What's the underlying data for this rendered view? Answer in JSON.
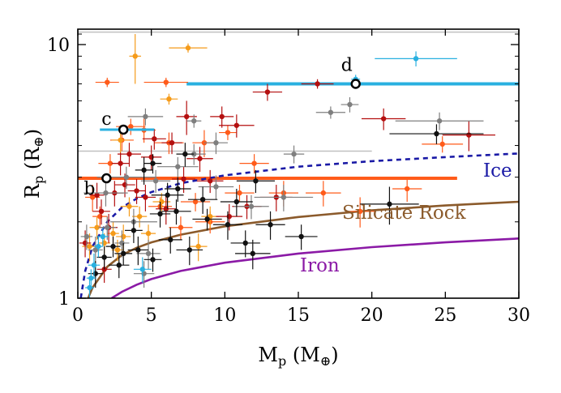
{
  "chart_data": {
    "type": "scatter",
    "title": "",
    "xlabel": {
      "main": "M",
      "sub": "p",
      "unit_open": " (M",
      "unit_sub": "⊕",
      "unit_close": ")"
    },
    "ylabel": {
      "main": "R",
      "sub": "p",
      "unit_open": " (R",
      "unit_sub": "⊕",
      "unit_close": ")"
    },
    "xlim": [
      0,
      30
    ],
    "ylim": [
      1,
      11.5
    ],
    "yscale": "log",
    "grid": false,
    "x_ticks": [
      0,
      5,
      10,
      15,
      20,
      25,
      30
    ],
    "y_ticks": [
      1,
      10
    ],
    "curves": [
      {
        "name": "Ice",
        "color": "#1a1aa6",
        "style": "dashed",
        "points": [
          [
            0.2,
            1.0
          ],
          [
            0.5,
            1.28
          ],
          [
            1,
            1.6
          ],
          [
            2,
            2.0
          ],
          [
            3,
            2.28
          ],
          [
            4,
            2.47
          ],
          [
            5,
            2.62
          ],
          [
            7,
            2.84
          ],
          [
            10,
            3.05
          ],
          [
            15,
            3.3
          ],
          [
            20,
            3.47
          ],
          [
            25,
            3.6
          ],
          [
            30,
            3.72
          ]
        ]
      },
      {
        "name": "Silicate Rock",
        "color": "#8b5a2b",
        "style": "solid",
        "points": [
          [
            0.7,
            1.0
          ],
          [
            1,
            1.1
          ],
          [
            2,
            1.33
          ],
          [
            3,
            1.48
          ],
          [
            4,
            1.58
          ],
          [
            5,
            1.66
          ],
          [
            7,
            1.78
          ],
          [
            10,
            1.92
          ],
          [
            15,
            2.09
          ],
          [
            20,
            2.22
          ],
          [
            25,
            2.32
          ],
          [
            30,
            2.4
          ]
        ]
      },
      {
        "name": "Iron",
        "color": "#8b1aa6",
        "style": "solid",
        "points": [
          [
            2.3,
            1.0
          ],
          [
            3,
            1.06
          ],
          [
            4,
            1.13
          ],
          [
            5,
            1.19
          ],
          [
            7,
            1.28
          ],
          [
            10,
            1.38
          ],
          [
            15,
            1.5
          ],
          [
            20,
            1.59
          ],
          [
            25,
            1.66
          ],
          [
            30,
            1.72
          ]
        ]
      }
    ],
    "reference_lines": [
      {
        "color": "#c0c0c0",
        "y": 11.2,
        "x_from": 0,
        "x_to": 30
      },
      {
        "color": "#c0c0c0",
        "y": 3.8,
        "x_from": 0,
        "x_to": 20
      },
      {
        "color": "#29b0e0",
        "y": 7.0,
        "x_from": 7.4,
        "x_to": 30
      },
      {
        "color": "#ff5b1a",
        "y": 2.97,
        "x_from": 0,
        "x_to": 25.8
      }
    ],
    "labeled_planets": [
      {
        "label": "b",
        "x": 1.95,
        "y": 2.97
      },
      {
        "label": "c",
        "x": 3.1,
        "y": 4.62,
        "x_err": [
          1.5,
          5.2
        ]
      },
      {
        "label": "d",
        "x": 18.9,
        "y": 7.0
      }
    ],
    "series": [
      {
        "color": "#ff5b1a",
        "points": [
          [
            2,
            7.1,
            0.8,
            0.3
          ],
          [
            6,
            7.1,
            1.5,
            0.3
          ],
          [
            4.5,
            4.6,
            0.8,
            0.5
          ],
          [
            1,
            2.5,
            0.5,
            0.3
          ],
          [
            2.2,
            3.4,
            0.8,
            0.3
          ],
          [
            3,
            4.2,
            0.8,
            0.4
          ],
          [
            5.6,
            2.3,
            0.8,
            0.2
          ],
          [
            7,
            1.9,
            0.8,
            0.2
          ],
          [
            8,
            2.4,
            1.0,
            0.2
          ],
          [
            11,
            2.6,
            1.0,
            0.2
          ],
          [
            16.7,
            2.6,
            1.2,
            0.3
          ],
          [
            19.2,
            2.2,
            1.0,
            0.3
          ],
          [
            22.4,
            2.7,
            1.0,
            0.3
          ],
          [
            8.6,
            4.1,
            0.8,
            0.5
          ],
          [
            12,
            3.4,
            1.0,
            0.3
          ],
          [
            14,
            2.6,
            1.0,
            0.3
          ],
          [
            6.2,
            4.1,
            1.0,
            0.4
          ],
          [
            24.8,
            4.05,
            1.4,
            0.3
          ],
          [
            1.5,
            2.1,
            0.5,
            0.2
          ],
          [
            9,
            2.0,
            1.0,
            0.2
          ],
          [
            10.2,
            4.5,
            0.6,
            0.3
          ],
          [
            3.6,
            4.75,
            1.0,
            0.35
          ]
        ]
      },
      {
        "color": "#f59b1a",
        "points": [
          [
            3.9,
            9.0,
            0.4,
            2.0
          ],
          [
            7.5,
            9.7,
            1.3,
            0.4
          ],
          [
            6.2,
            6.1,
            0.6,
            0.3
          ],
          [
            2.9,
            4.2,
            0.6,
            0.6
          ],
          [
            0.8,
            1.6,
            0.5,
            0.2
          ],
          [
            1.3,
            1.9,
            0.5,
            0.2
          ],
          [
            2.4,
            1.8,
            0.4,
            0.2
          ],
          [
            3.1,
            1.75,
            0.5,
            0.2
          ],
          [
            4.2,
            2.1,
            0.5,
            0.2
          ],
          [
            5.7,
            2.4,
            0.6,
            0.2
          ],
          [
            8.2,
            1.6,
            0.6,
            0.2
          ],
          [
            9,
            2.1,
            0.6,
            0.2
          ],
          [
            2.7,
            1.55,
            0.4,
            0.15
          ],
          [
            1.8,
            1.65,
            0.4,
            0.15
          ],
          [
            3.5,
            2.3,
            0.6,
            0.2
          ],
          [
            4.8,
            1.8,
            0.5,
            0.15
          ]
        ]
      },
      {
        "color": "#b40f0f",
        "points": [
          [
            2.5,
            2.6,
            0.6,
            0.3
          ],
          [
            3.5,
            3.7,
            0.8,
            0.4
          ],
          [
            5.2,
            4.25,
            0.8,
            0.4
          ],
          [
            7.4,
            5.2,
            0.7,
            0.8
          ],
          [
            9.8,
            5.2,
            0.8,
            0.5
          ],
          [
            12.9,
            6.5,
            1.0,
            0.5
          ],
          [
            16.3,
            7.0,
            1.1,
            0.3
          ],
          [
            20.8,
            5.1,
            1.5,
            0.5
          ],
          [
            26.6,
            4.4,
            1.8,
            0.6
          ],
          [
            10.8,
            4.8,
            1.2,
            0.5
          ],
          [
            8.3,
            3.55,
            0.9,
            0.4
          ],
          [
            6.4,
            4.1,
            0.7,
            0.4
          ],
          [
            3.2,
            2.8,
            0.7,
            0.3
          ],
          [
            1.6,
            2.2,
            0.6,
            0.25
          ],
          [
            2.1,
            1.9,
            0.6,
            0.25
          ],
          [
            4.6,
            2.5,
            0.7,
            0.3
          ],
          [
            6,
            2.25,
            0.7,
            0.3
          ],
          [
            10.3,
            2.1,
            0.9,
            0.25
          ],
          [
            11.5,
            2.3,
            1.0,
            0.25
          ],
          [
            13.5,
            2.5,
            1.1,
            0.3
          ],
          [
            5,
            3.6,
            0.7,
            0.4
          ],
          [
            7.2,
            2.95,
            0.8,
            0.35
          ],
          [
            9,
            2.9,
            0.9,
            0.3
          ],
          [
            4,
            2.65,
            0.6,
            0.3
          ],
          [
            2.9,
            3.4,
            0.6,
            0.35
          ],
          [
            1.3,
            2.55,
            0.5,
            0.3
          ],
          [
            0.5,
            1.65,
            0.4,
            0.2
          ],
          [
            1.8,
            1.3,
            0.5,
            0.15
          ]
        ]
      },
      {
        "color": "#7f7f7f",
        "points": [
          [
            4.6,
            5.2,
            1.2,
            0.4
          ],
          [
            7.9,
            5.0,
            0.5,
            0.3
          ],
          [
            9.4,
            4.1,
            0.8,
            0.4
          ],
          [
            14.7,
            3.7,
            0.7,
            0.3
          ],
          [
            17.2,
            5.4,
            1.0,
            0.3
          ],
          [
            18.5,
            5.8,
            0.6,
            0.4
          ],
          [
            24.6,
            5.0,
            3.0,
            0.4
          ],
          [
            14,
            2.5,
            2.0,
            0.3
          ],
          [
            3.3,
            3.0,
            2.0,
            0.3
          ],
          [
            1.9,
            2.6,
            1.5,
            0.3
          ],
          [
            3.8,
            2.0,
            1.6,
            0.25
          ],
          [
            5.3,
            2.9,
            1.0,
            0.3
          ],
          [
            6.8,
            3.3,
            1.4,
            0.3
          ],
          [
            9.4,
            2.75,
            1.2,
            0.3
          ],
          [
            11.8,
            2.3,
            1.2,
            0.25
          ],
          [
            4.8,
            1.5,
            0.8,
            0.2
          ],
          [
            4.5,
            1.25,
            0.7,
            0.15
          ],
          [
            2,
            1.9,
            0.6,
            0.2
          ],
          [
            7.9,
            3.7,
            0.8,
            0.35
          ],
          [
            0.6,
            1.75,
            0.4,
            0.2
          ],
          [
            1.2,
            1.55,
            0.5,
            0.2
          ],
          [
            3,
            1.65,
            0.5,
            0.2
          ]
        ]
      },
      {
        "color": "#111111",
        "points": [
          [
            4.5,
            3.2,
            0.6,
            0.4
          ],
          [
            5.1,
            3.4,
            0.6,
            0.3
          ],
          [
            7.3,
            3.7,
            0.6,
            0.4
          ],
          [
            24.4,
            4.45,
            3.2,
            0.4
          ],
          [
            21.2,
            2.35,
            2.0,
            0.4
          ],
          [
            12.1,
            2.9,
            1.3,
            0.3
          ],
          [
            6.1,
            2.55,
            1.1,
            0.3
          ],
          [
            6.7,
            2.2,
            1.0,
            0.25
          ],
          [
            6.8,
            2.7,
            0.9,
            0.3
          ],
          [
            8.5,
            2.45,
            1.0,
            0.3
          ],
          [
            10.2,
            1.95,
            1.0,
            0.25
          ],
          [
            11.4,
            1.65,
            1.0,
            0.2
          ],
          [
            10.8,
            2.4,
            1.1,
            0.3
          ],
          [
            13.1,
            1.95,
            1.0,
            0.25
          ],
          [
            15.2,
            1.75,
            1.1,
            0.2
          ],
          [
            11.9,
            1.5,
            1.2,
            0.2
          ],
          [
            7.6,
            1.55,
            0.9,
            0.2
          ],
          [
            4.1,
            1.55,
            0.7,
            0.2
          ],
          [
            2.8,
            1.35,
            0.7,
            0.15
          ],
          [
            1.2,
            1.25,
            0.5,
            0.15
          ],
          [
            1.8,
            1.45,
            0.5,
            0.15
          ],
          [
            3.8,
            1.85,
            0.6,
            0.2
          ],
          [
            5.6,
            2.15,
            0.7,
            0.25
          ],
          [
            8.8,
            2.05,
            1.0,
            0.2
          ],
          [
            3.1,
            1.5,
            0.6,
            0.15
          ],
          [
            5.1,
            1.42,
            0.6,
            0.15
          ],
          [
            6.3,
            1.7,
            0.8,
            0.2
          ],
          [
            2.4,
            1.6,
            0.5,
            0.15
          ]
        ]
      },
      {
        "color": "#29b0e0",
        "points": [
          [
            23,
            8.8,
            2.8,
            0.6
          ],
          [
            1.1,
            1.35,
            0.4,
            0.15
          ],
          [
            0.8,
            1.1,
            0.3,
            0.1
          ],
          [
            1.4,
            1.6,
            0.3,
            0.15
          ],
          [
            0.9,
            1.2,
            0.3,
            0.1
          ],
          [
            4.4,
            1.3,
            0.6,
            0.15
          ],
          [
            1.7,
            1.75,
            0.4,
            0.15
          ],
          [
            18.9,
            7.3,
            0.3,
            0.3
          ]
        ]
      }
    ]
  }
}
